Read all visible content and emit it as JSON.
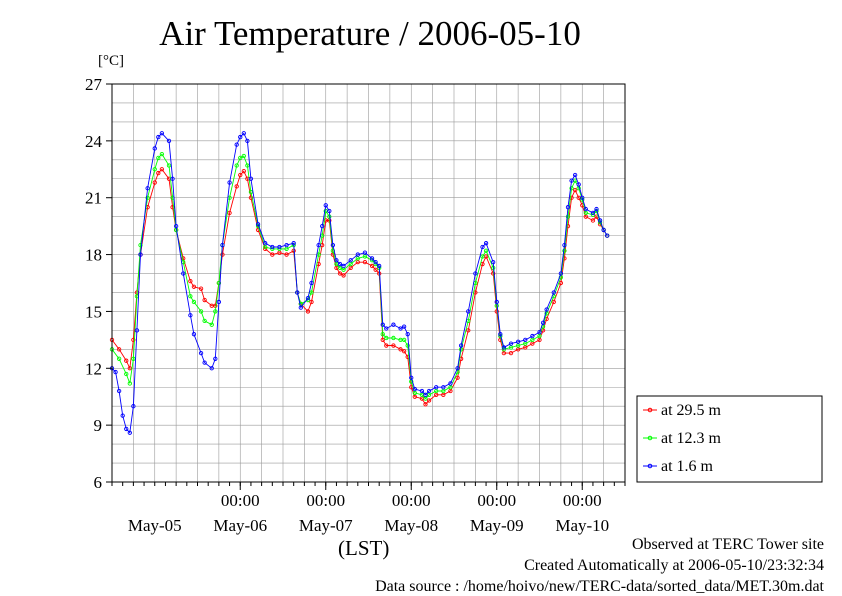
{
  "chart_data": {
    "type": "line",
    "title": "Air Temperature / 2006-05-10",
    "ylabel": "[°C]",
    "xlabel": "(LST)",
    "ylim": [
      6,
      27
    ],
    "yticks": [
      6,
      9,
      12,
      15,
      18,
      21,
      24,
      27
    ],
    "xlim": [
      0,
      144
    ],
    "time_tick_label": "00:00",
    "time_ticks": [
      36,
      60,
      84,
      108,
      132
    ],
    "date_labels": [
      {
        "label": "May-05",
        "x": 12
      },
      {
        "label": "May-06",
        "x": 36
      },
      {
        "label": "May-07",
        "x": 60
      },
      {
        "label": "May-08",
        "x": 84
      },
      {
        "label": "May-09",
        "x": 108
      },
      {
        "label": "May-10",
        "x": 132
      }
    ],
    "grid": true,
    "legend_position": "right",
    "series": [
      {
        "name": "at 29.5 m",
        "color": "#ff0000",
        "points": [
          [
            0,
            13.5
          ],
          [
            2,
            13.0
          ],
          [
            4,
            12.4
          ],
          [
            5,
            12.0
          ],
          [
            6,
            13.5
          ],
          [
            7,
            16.0
          ],
          [
            8,
            18.0
          ],
          [
            10,
            20.5
          ],
          [
            12,
            21.8
          ],
          [
            13,
            22.3
          ],
          [
            14,
            22.5
          ],
          [
            16,
            22.0
          ],
          [
            17,
            20.5
          ],
          [
            18,
            19.3
          ],
          [
            20,
            17.8
          ],
          [
            22,
            16.6
          ],
          [
            23,
            16.3
          ],
          [
            25,
            16.2
          ],
          [
            26,
            15.6
          ],
          [
            28,
            15.3
          ],
          [
            29,
            15.3
          ],
          [
            30,
            16.5
          ],
          [
            31,
            18.0
          ],
          [
            33,
            20.2
          ],
          [
            35,
            21.6
          ],
          [
            36,
            22.2
          ],
          [
            37,
            22.4
          ],
          [
            38,
            22.0
          ],
          [
            39,
            21.0
          ],
          [
            41,
            19.3
          ],
          [
            43,
            18.3
          ],
          [
            45,
            18.0
          ],
          [
            47,
            18.1
          ],
          [
            49,
            18.0
          ],
          [
            51,
            18.2
          ],
          [
            52,
            16.0
          ],
          [
            53,
            15.4
          ],
          [
            55,
            15.0
          ],
          [
            56,
            15.5
          ],
          [
            58,
            17.5
          ],
          [
            59,
            18.5
          ],
          [
            60,
            19.8
          ],
          [
            61,
            19.8
          ],
          [
            62,
            18.0
          ],
          [
            63,
            17.3
          ],
          [
            64,
            17.0
          ],
          [
            65,
            16.9
          ],
          [
            67,
            17.3
          ],
          [
            69,
            17.6
          ],
          [
            71,
            17.6
          ],
          [
            73,
            17.4
          ],
          [
            74,
            17.2
          ],
          [
            75,
            17.0
          ],
          [
            76,
            13.5
          ],
          [
            77,
            13.2
          ],
          [
            79,
            13.2
          ],
          [
            81,
            13.0
          ],
          [
            82,
            12.9
          ],
          [
            83,
            12.6
          ],
          [
            84,
            11.0
          ],
          [
            85,
            10.5
          ],
          [
            87,
            10.4
          ],
          [
            88,
            10.1
          ],
          [
            89,
            10.3
          ],
          [
            91,
            10.6
          ],
          [
            93,
            10.6
          ],
          [
            95,
            10.8
          ],
          [
            97,
            11.5
          ],
          [
            98,
            12.5
          ],
          [
            100,
            14.0
          ],
          [
            102,
            16.0
          ],
          [
            104,
            17.5
          ],
          [
            105,
            17.9
          ],
          [
            107,
            17.0
          ],
          [
            108,
            15.0
          ],
          [
            109,
            13.5
          ],
          [
            110,
            12.8
          ],
          [
            112,
            12.8
          ],
          [
            114,
            13.0
          ],
          [
            116,
            13.1
          ],
          [
            118,
            13.3
          ],
          [
            120,
            13.5
          ],
          [
            121,
            14.0
          ],
          [
            122,
            14.6
          ],
          [
            124,
            15.5
          ],
          [
            126,
            16.5
          ],
          [
            127,
            17.8
          ],
          [
            128,
            19.5
          ],
          [
            129,
            21.0
          ],
          [
            130,
            21.4
          ],
          [
            131,
            21.0
          ],
          [
            132,
            20.6
          ],
          [
            133,
            20.0
          ],
          [
            135,
            19.8
          ],
          [
            136,
            20.0
          ],
          [
            137,
            19.6
          ],
          [
            138,
            19.3
          ],
          [
            139,
            19.0
          ]
        ]
      },
      {
        "name": "at 12.3 m",
        "color": "#00ff00",
        "points": [
          [
            0,
            13.0
          ],
          [
            2,
            12.5
          ],
          [
            4,
            11.7
          ],
          [
            5,
            11.2
          ],
          [
            6,
            12.5
          ],
          [
            7,
            15.8
          ],
          [
            8,
            18.5
          ],
          [
            10,
            21.0
          ],
          [
            12,
            22.5
          ],
          [
            13,
            23.1
          ],
          [
            14,
            23.3
          ],
          [
            16,
            22.7
          ],
          [
            17,
            21.0
          ],
          [
            18,
            19.3
          ],
          [
            20,
            17.6
          ],
          [
            22,
            15.8
          ],
          [
            23,
            15.5
          ],
          [
            25,
            15.0
          ],
          [
            26,
            14.5
          ],
          [
            28,
            14.3
          ],
          [
            29,
            15.0
          ],
          [
            30,
            16.5
          ],
          [
            31,
            18.5
          ],
          [
            33,
            21.0
          ],
          [
            35,
            22.7
          ],
          [
            36,
            23.1
          ],
          [
            37,
            23.2
          ],
          [
            38,
            22.7
          ],
          [
            39,
            21.3
          ],
          [
            41,
            19.5
          ],
          [
            43,
            18.4
          ],
          [
            45,
            18.3
          ],
          [
            47,
            18.3
          ],
          [
            49,
            18.3
          ],
          [
            51,
            18.5
          ],
          [
            52,
            16.0
          ],
          [
            53,
            15.4
          ],
          [
            55,
            15.6
          ],
          [
            56,
            16.0
          ],
          [
            58,
            18.0
          ],
          [
            59,
            19.0
          ],
          [
            60,
            20.3
          ],
          [
            61,
            20.0
          ],
          [
            62,
            18.2
          ],
          [
            63,
            17.5
          ],
          [
            64,
            17.3
          ],
          [
            65,
            17.2
          ],
          [
            67,
            17.5
          ],
          [
            69,
            17.8
          ],
          [
            71,
            17.9
          ],
          [
            73,
            17.7
          ],
          [
            74,
            17.5
          ],
          [
            75,
            17.3
          ],
          [
            76,
            13.8
          ],
          [
            77,
            13.6
          ],
          [
            79,
            13.6
          ],
          [
            81,
            13.5
          ],
          [
            82,
            13.5
          ],
          [
            83,
            13.2
          ],
          [
            84,
            11.3
          ],
          [
            85,
            10.7
          ],
          [
            87,
            10.6
          ],
          [
            88,
            10.4
          ],
          [
            89,
            10.6
          ],
          [
            91,
            10.8
          ],
          [
            93,
            10.8
          ],
          [
            95,
            11.0
          ],
          [
            97,
            11.8
          ],
          [
            98,
            13.0
          ],
          [
            100,
            14.5
          ],
          [
            102,
            16.5
          ],
          [
            104,
            17.9
          ],
          [
            105,
            18.2
          ],
          [
            107,
            17.3
          ],
          [
            108,
            15.3
          ],
          [
            109,
            13.7
          ],
          [
            110,
            13.0
          ],
          [
            112,
            13.1
          ],
          [
            114,
            13.2
          ],
          [
            116,
            13.3
          ],
          [
            118,
            13.5
          ],
          [
            120,
            13.7
          ],
          [
            121,
            14.2
          ],
          [
            122,
            14.9
          ],
          [
            124,
            15.8
          ],
          [
            126,
            16.8
          ],
          [
            127,
            18.2
          ],
          [
            128,
            20.0
          ],
          [
            129,
            21.5
          ],
          [
            130,
            21.9
          ],
          [
            131,
            21.5
          ],
          [
            132,
            20.9
          ],
          [
            133,
            20.2
          ],
          [
            135,
            20.1
          ],
          [
            136,
            20.3
          ],
          [
            137,
            19.7
          ],
          [
            138,
            19.3
          ],
          [
            139,
            19.0
          ]
        ]
      },
      {
        "name": "at 1.6 m",
        "color": "#0000ff",
        "points": [
          [
            0,
            12.0
          ],
          [
            1,
            11.8
          ],
          [
            2,
            10.8
          ],
          [
            3,
            9.5
          ],
          [
            4,
            8.8
          ],
          [
            5,
            8.6
          ],
          [
            6,
            10.0
          ],
          [
            7,
            14.0
          ],
          [
            8,
            18.0
          ],
          [
            10,
            21.5
          ],
          [
            12,
            23.6
          ],
          [
            13,
            24.2
          ],
          [
            14,
            24.4
          ],
          [
            16,
            24.0
          ],
          [
            17,
            22.0
          ],
          [
            18,
            19.5
          ],
          [
            20,
            17.0
          ],
          [
            22,
            14.8
          ],
          [
            23,
            13.8
          ],
          [
            25,
            12.8
          ],
          [
            26,
            12.3
          ],
          [
            28,
            12.0
          ],
          [
            29,
            12.5
          ],
          [
            30,
            15.5
          ],
          [
            31,
            18.5
          ],
          [
            33,
            21.8
          ],
          [
            35,
            23.8
          ],
          [
            36,
            24.2
          ],
          [
            37,
            24.4
          ],
          [
            38,
            24.0
          ],
          [
            39,
            22.0
          ],
          [
            41,
            19.6
          ],
          [
            43,
            18.6
          ],
          [
            45,
            18.4
          ],
          [
            47,
            18.4
          ],
          [
            49,
            18.5
          ],
          [
            51,
            18.6
          ],
          [
            52,
            16.0
          ],
          [
            53,
            15.2
          ],
          [
            55,
            15.7
          ],
          [
            56,
            16.5
          ],
          [
            58,
            18.5
          ],
          [
            59,
            19.5
          ],
          [
            60,
            20.6
          ],
          [
            61,
            20.3
          ],
          [
            62,
            18.5
          ],
          [
            63,
            17.7
          ],
          [
            64,
            17.5
          ],
          [
            65,
            17.4
          ],
          [
            67,
            17.7
          ],
          [
            69,
            18.0
          ],
          [
            71,
            18.1
          ],
          [
            73,
            17.8
          ],
          [
            74,
            17.6
          ],
          [
            75,
            17.4
          ],
          [
            76,
            14.3
          ],
          [
            77,
            14.1
          ],
          [
            79,
            14.3
          ],
          [
            81,
            14.1
          ],
          [
            82,
            14.2
          ],
          [
            83,
            13.8
          ],
          [
            84,
            11.5
          ],
          [
            85,
            10.9
          ],
          [
            87,
            10.8
          ],
          [
            88,
            10.6
          ],
          [
            89,
            10.8
          ],
          [
            91,
            11.0
          ],
          [
            93,
            11.0
          ],
          [
            95,
            11.2
          ],
          [
            97,
            12.0
          ],
          [
            98,
            13.2
          ],
          [
            100,
            15.0
          ],
          [
            102,
            17.0
          ],
          [
            104,
            18.4
          ],
          [
            105,
            18.6
          ],
          [
            107,
            17.6
          ],
          [
            108,
            15.5
          ],
          [
            109,
            13.8
          ],
          [
            110,
            13.1
          ],
          [
            112,
            13.3
          ],
          [
            114,
            13.4
          ],
          [
            116,
            13.5
          ],
          [
            118,
            13.7
          ],
          [
            120,
            13.9
          ],
          [
            121,
            14.4
          ],
          [
            122,
            15.1
          ],
          [
            124,
            16.0
          ],
          [
            126,
            17.0
          ],
          [
            127,
            18.5
          ],
          [
            128,
            20.5
          ],
          [
            129,
            21.9
          ],
          [
            130,
            22.2
          ],
          [
            131,
            21.7
          ],
          [
            132,
            21.0
          ],
          [
            133,
            20.4
          ],
          [
            135,
            20.2
          ],
          [
            136,
            20.4
          ],
          [
            137,
            19.8
          ],
          [
            138,
            19.3
          ],
          [
            139,
            19.0
          ]
        ]
      }
    ]
  },
  "footer": {
    "line1": "Observed at TERC Tower site",
    "line2": "Created Automatically at 2006-05-10/23:32:34",
    "line3": "Data source : /home/hoivo/new/TERC-data/sorted_data/MET.30m.dat"
  }
}
